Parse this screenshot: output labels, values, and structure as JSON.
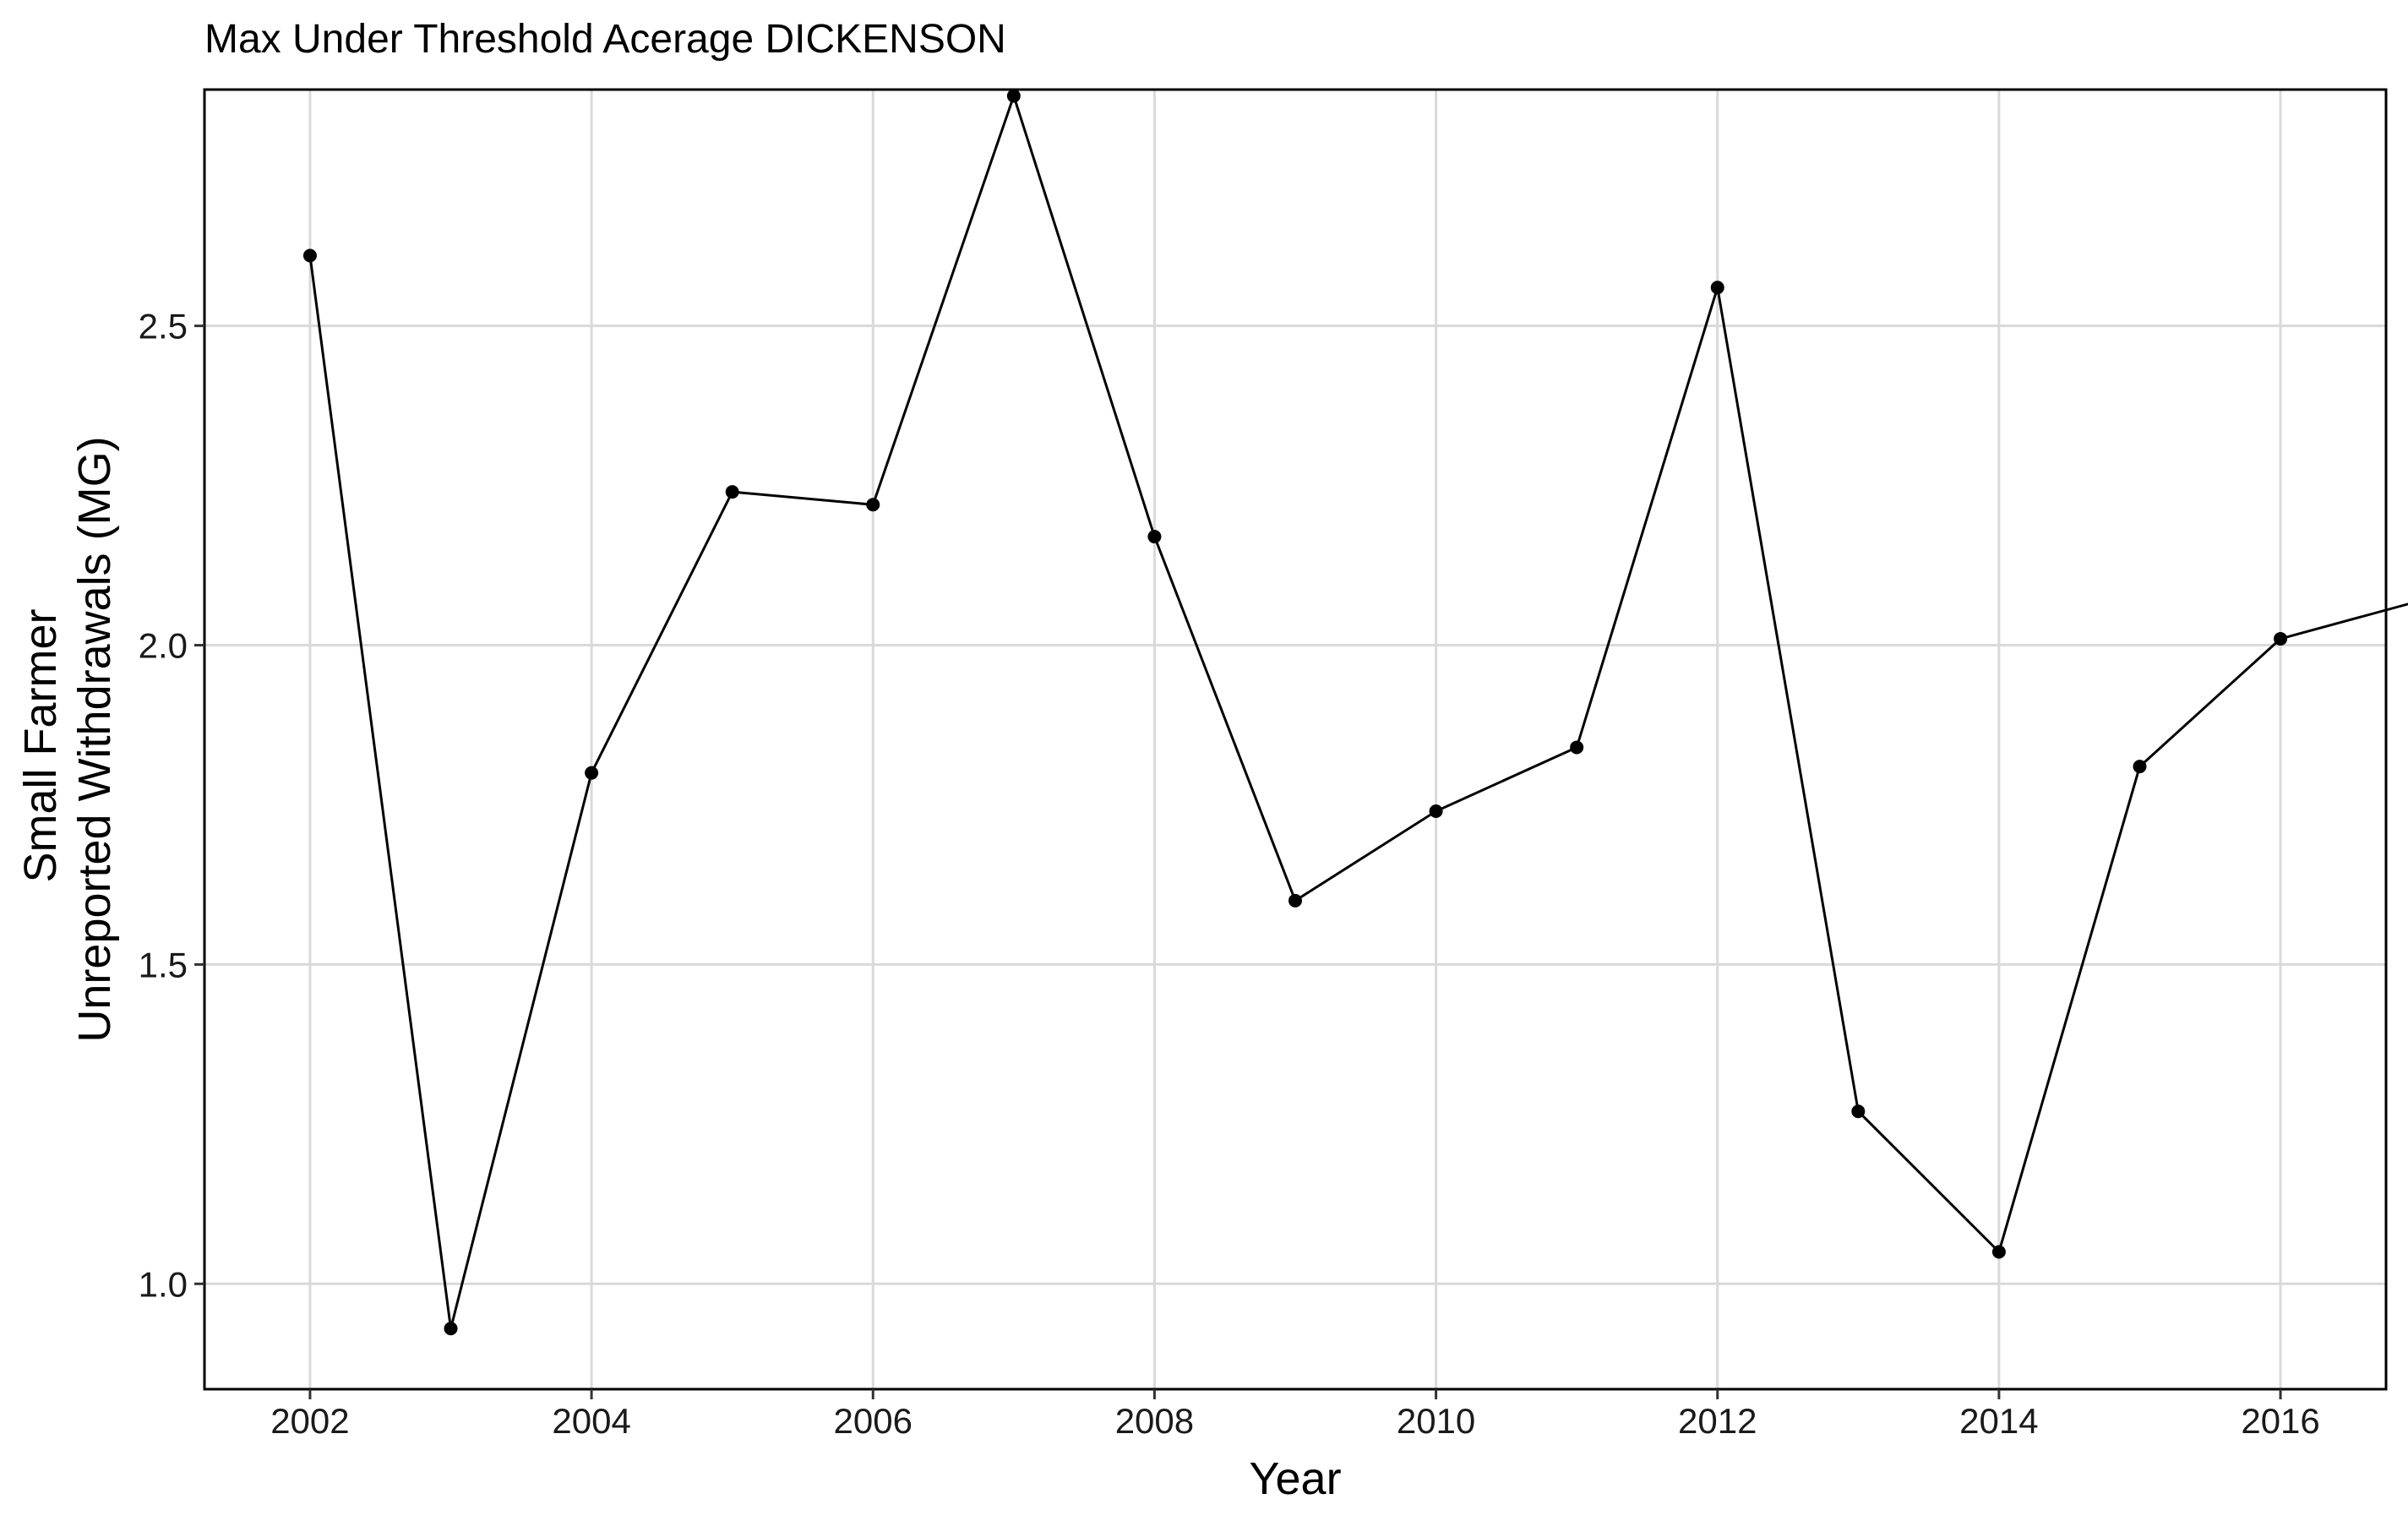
{
  "chart_data": {
    "type": "line",
    "title": "Max Under Threshold Acerage DICKENSON",
    "xlabel": "Year",
    "ylabel_lines": [
      "Small Farmer",
      "Unreported Withdrawals (MG)"
    ],
    "xlim": [
      2001.25,
      2016.75
    ],
    "ylim": [
      0.835,
      2.87
    ],
    "x_ticks": [
      2002,
      2004,
      2006,
      2008,
      2010,
      2012,
      2014,
      2016
    ],
    "y_ticks": [
      1.0,
      1.5,
      2.0,
      2.5
    ],
    "x_tick_labels": [
      "2002",
      "2004",
      "2006",
      "2008",
      "2010",
      "2012",
      "2014",
      "2016"
    ],
    "y_tick_labels": [
      "1.0",
      "1.5",
      "2.0",
      "2.5"
    ],
    "grid": true,
    "legend": "none",
    "series": [
      {
        "color": "#000000",
        "points": [
          {
            "x": 2002,
            "y": 2.61
          },
          {
            "x": 2003,
            "y": 0.93
          },
          {
            "x": 2004,
            "y": 1.8
          },
          {
            "x": 2005,
            "y": 2.24
          },
          {
            "x": 2006,
            "y": 2.22
          },
          {
            "x": 2007,
            "y": 2.86
          },
          {
            "x": 2008,
            "y": 2.17
          },
          {
            "x": 2009,
            "y": 1.6
          },
          {
            "x": 2010,
            "y": 1.74
          },
          {
            "x": 2011,
            "y": 1.84
          },
          {
            "x": 2012,
            "y": 2.56
          },
          {
            "x": 2013,
            "y": 1.27
          },
          {
            "x": 2014,
            "y": 1.05
          },
          {
            "x": 2015,
            "y": 1.81
          },
          {
            "x": 2016,
            "y": 2.01
          },
          {
            "x": 2017,
            "y": 2.07
          }
        ]
      }
    ]
  }
}
